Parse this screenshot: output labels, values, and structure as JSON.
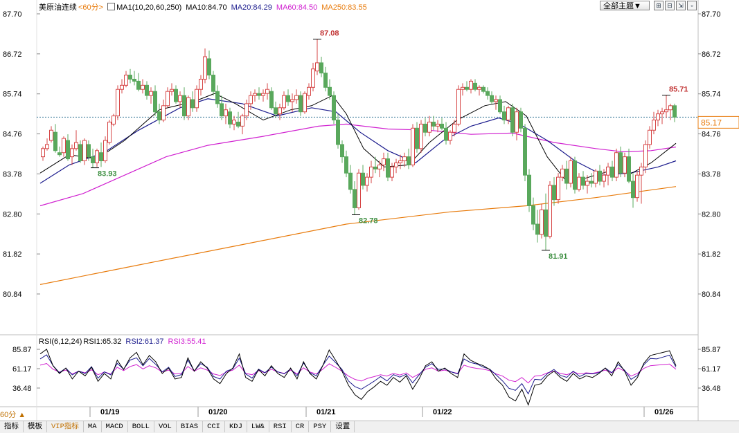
{
  "header": {
    "instrument": "美原油连续",
    "period": "<60分>",
    "indicator": "MA1(10,20,60,250)",
    "ma10": "MA10:84.70",
    "ma20": "MA20:84.29",
    "ma60": "MA60:84.50",
    "ma250": "MA250:83.55",
    "all_themes": "全部主题▼"
  },
  "colors": {
    "up": "#d64545",
    "down": "#59a85c",
    "ma10": "#000000",
    "ma20": "#1a1a8c",
    "ma60": "#d020d0",
    "ma250": "#e87b0c",
    "last": "#e87b0c"
  },
  "price_axis": {
    "ticks": [
      "87.70",
      "86.72",
      "85.74",
      "84.76",
      "83.78",
      "82.80",
      "81.82",
      "80.84"
    ],
    "current": "85.17"
  },
  "annotations": {
    "high": "87.08",
    "low1": "83.93",
    "low2": "82.78",
    "low3": "81.91",
    "recent_high": "85.71"
  },
  "rsi": {
    "label": "RSI(6,12,24)",
    "rsi1": "RSI1:65.32",
    "rsi2": "RSI2:61.37",
    "rsi3": "RSI3:55.41",
    "ticks": [
      "85.87",
      "61.17",
      "36.48"
    ]
  },
  "dates": [
    "01/19",
    "01/20",
    "01/21",
    "01/22",
    "01/26"
  ],
  "bottom": {
    "period": "60分 ▲",
    "tabs": [
      "指标",
      "模板",
      "VIP指标",
      "MA",
      "MACD",
      "BOLL",
      "VOL",
      "BIAS",
      "CCI",
      "KDJ",
      "LW&",
      "RSI",
      "CR",
      "PSY",
      "设置"
    ]
  }
}
